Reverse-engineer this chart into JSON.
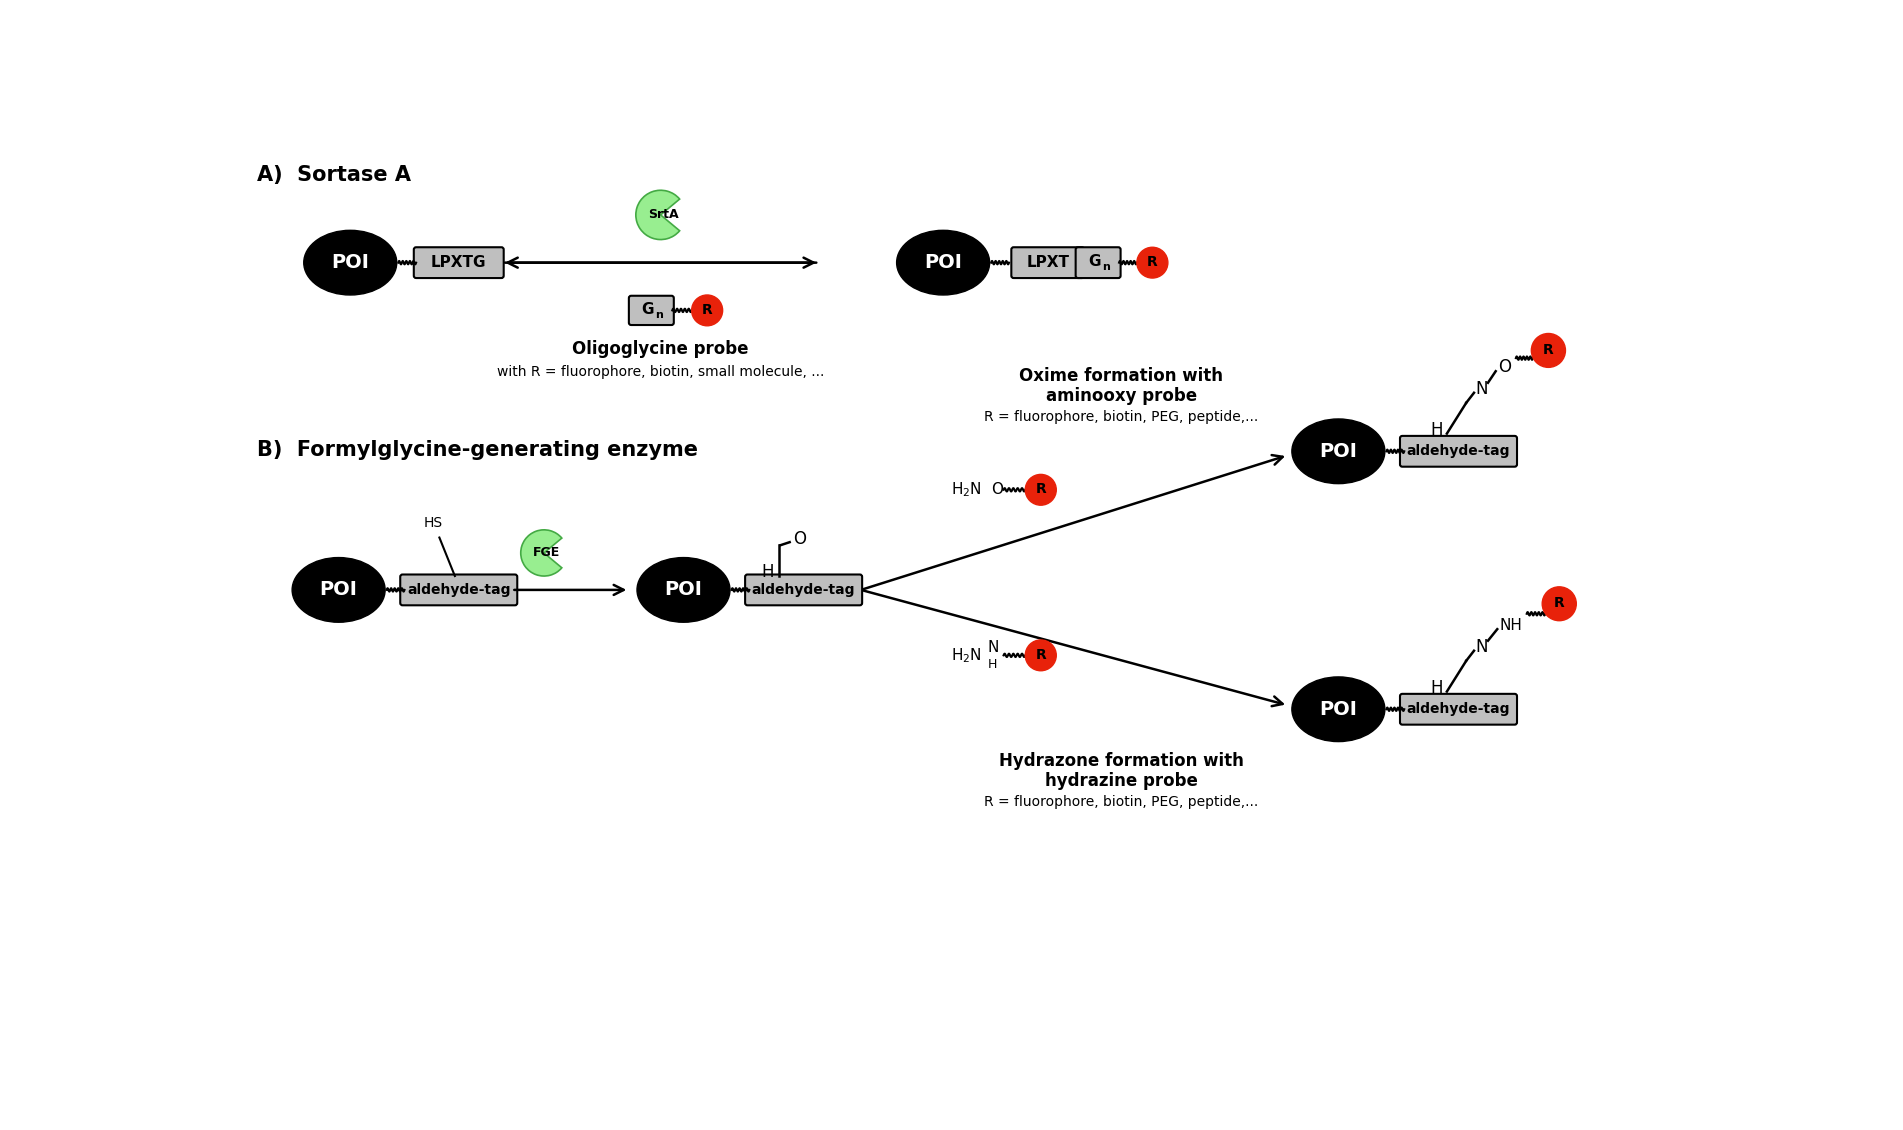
{
  "bg_color": "#ffffff",
  "black": "#000000",
  "white": "#ffffff",
  "gray_box": "#bfbfbf",
  "red_circle": "#e8220a",
  "green_enzyme": "#98ee90",
  "section_A_label": "A)  Sortase A",
  "section_B_label": "B)  Formylglycine-generating enzyme",
  "poi_text": "POI",
  "lpxtg_text": "LPXTG",
  "lpxt_text": "LPXT",
  "r_text": "R",
  "srta_text": "SrtA",
  "fge_text": "FGE",
  "aldehyde_tag": "aldehyde-tag",
  "oligo_probe_bold": "Oligoglycine probe",
  "oligo_probe_sub": "with R = fluorophore, biotin, small molecule, ...",
  "oxime_bold1": "Oxime formation with",
  "oxime_bold2": "aminooxy probe",
  "oxime_sub": "R = fluorophore, biotin, PEG, peptide,...",
  "hydrazone_bold1": "Hydrazone formation with",
  "hydrazone_bold2": "hydrazine probe",
  "hydrazone_sub": "R = fluorophore, biotin, PEG, peptide,..."
}
